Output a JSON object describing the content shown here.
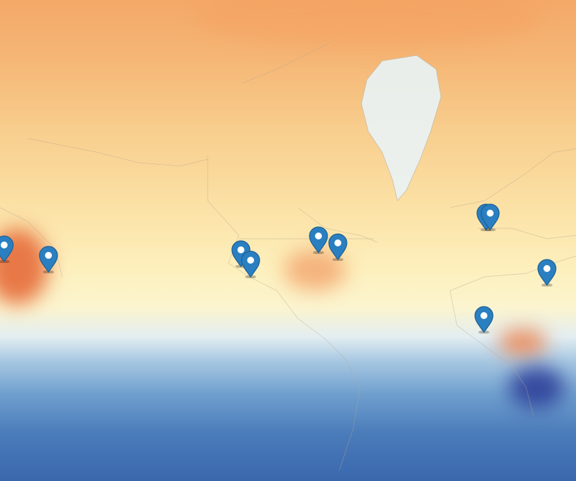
{
  "map": {
    "layer": "temperature-heatmap",
    "palette": {
      "warm_high": "#e0542c",
      "warm": "#f5a868",
      "neutral": "#fdf0bd",
      "cool": "#6f9fce",
      "cold": "#2f3f9a"
    },
    "marker_color": "#2a7fc0",
    "marker_icon": "map-pin-icon",
    "markers": [
      {
        "id": "marker-1"
      },
      {
        "id": "marker-2"
      },
      {
        "id": "marker-3"
      },
      {
        "id": "marker-4"
      },
      {
        "id": "marker-5"
      },
      {
        "id": "marker-6"
      },
      {
        "id": "marker-7"
      },
      {
        "id": "marker-8"
      },
      {
        "id": "marker-9"
      },
      {
        "id": "marker-10"
      },
      {
        "id": "marker-11"
      },
      {
        "id": "marker-12"
      }
    ]
  }
}
